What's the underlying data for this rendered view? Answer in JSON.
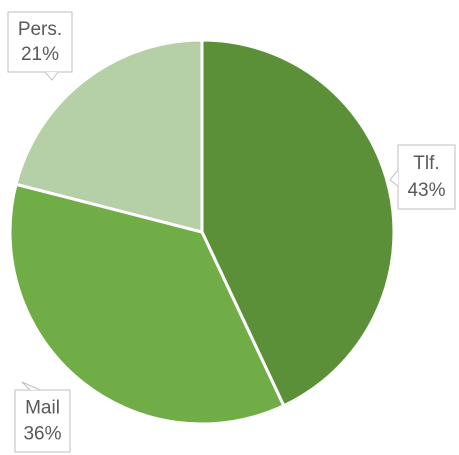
{
  "chart_data": {
    "type": "pie",
    "categories": [
      "Tlf.",
      "Mail",
      "Pers."
    ],
    "values": [
      43,
      36,
      21
    ],
    "value_labels": [
      "43%",
      "36%",
      "21%"
    ],
    "colors": [
      "#5b9039",
      "#70ad47",
      "#b5cfa6"
    ]
  }
}
